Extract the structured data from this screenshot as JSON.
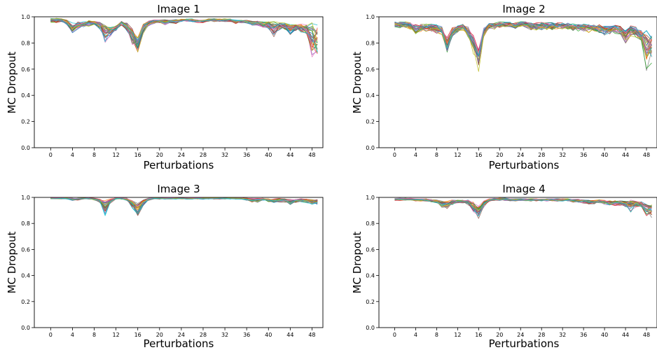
{
  "chart_data": [
    {
      "type": "line",
      "title": "Image 1",
      "xlabel": "Perturbations",
      "ylabel": "MC Dropout",
      "xlim": [
        -3,
        50
      ],
      "ylim": [
        0.0,
        1.0
      ],
      "xticks": [
        0,
        4,
        8,
        12,
        16,
        20,
        24,
        28,
        32,
        36,
        40,
        44,
        48
      ],
      "yticks": [
        0.0,
        0.2,
        0.4,
        0.6,
        0.8,
        1.0
      ],
      "xtick_labels": [
        "0",
        "4",
        "8",
        "12",
        "16",
        "20",
        "24",
        "28",
        "32",
        "36",
        "40",
        "44",
        "48"
      ],
      "ytick_labels": [
        "0.0",
        "0.2",
        "0.4",
        "0.6",
        "0.8",
        "1.0"
      ],
      "grid": false,
      "num_series": 30,
      "x": [
        0,
        1,
        2,
        3,
        4,
        5,
        6,
        7,
        8,
        9,
        10,
        11,
        12,
        13,
        14,
        15,
        16,
        17,
        18,
        19,
        20,
        21,
        22,
        23,
        24,
        25,
        26,
        27,
        28,
        29,
        30,
        31,
        32,
        33,
        34,
        35,
        36,
        37,
        38,
        39,
        40,
        41,
        42,
        43,
        44,
        45,
        46,
        47,
        48,
        49
      ],
      "mean_values": [
        0.98,
        0.98,
        0.98,
        0.97,
        0.93,
        0.95,
        0.95,
        0.96,
        0.96,
        0.95,
        0.91,
        0.9,
        0.92,
        0.96,
        0.94,
        0.88,
        0.82,
        0.93,
        0.96,
        0.97,
        0.97,
        0.97,
        0.97,
        0.97,
        0.98,
        0.98,
        0.98,
        0.97,
        0.97,
        0.98,
        0.98,
        0.98,
        0.98,
        0.98,
        0.97,
        0.97,
        0.97,
        0.96,
        0.96,
        0.95,
        0.95,
        0.93,
        0.94,
        0.94,
        0.92,
        0.93,
        0.93,
        0.92,
        0.88,
        0.86
      ],
      "min_values": [
        0.95,
        0.95,
        0.96,
        0.93,
        0.86,
        0.9,
        0.91,
        0.92,
        0.93,
        0.9,
        0.78,
        0.84,
        0.88,
        0.93,
        0.88,
        0.76,
        0.71,
        0.86,
        0.92,
        0.94,
        0.95,
        0.93,
        0.95,
        0.94,
        0.96,
        0.96,
        0.96,
        0.95,
        0.95,
        0.96,
        0.96,
        0.96,
        0.96,
        0.96,
        0.94,
        0.95,
        0.95,
        0.93,
        0.93,
        0.9,
        0.89,
        0.82,
        0.89,
        0.89,
        0.85,
        0.88,
        0.87,
        0.85,
        0.6,
        0.62
      ]
    },
    {
      "type": "line",
      "title": "Image 2",
      "xlabel": "Perturbations",
      "ylabel": "MC Dropout",
      "xlim": [
        -3,
        50
      ],
      "ylim": [
        0.0,
        1.0
      ],
      "xticks": [
        0,
        4,
        8,
        12,
        16,
        20,
        24,
        28,
        32,
        36,
        40,
        44,
        48
      ],
      "yticks": [
        0.0,
        0.2,
        0.4,
        0.6,
        0.8,
        1.0
      ],
      "xtick_labels": [
        "0",
        "4",
        "8",
        "12",
        "16",
        "20",
        "24",
        "28",
        "32",
        "36",
        "40",
        "44",
        "48"
      ],
      "ytick_labels": [
        "0.0",
        "0.2",
        "0.4",
        "0.6",
        "0.8",
        "1.0"
      ],
      "grid": false,
      "num_series": 30,
      "x": [
        0,
        1,
        2,
        3,
        4,
        5,
        6,
        7,
        8,
        9,
        10,
        11,
        12,
        13,
        14,
        15,
        16,
        17,
        18,
        19,
        20,
        21,
        22,
        23,
        24,
        25,
        26,
        27,
        28,
        29,
        30,
        31,
        32,
        33,
        34,
        35,
        36,
        37,
        38,
        39,
        40,
        41,
        42,
        43,
        44,
        45,
        46,
        47,
        48,
        49
      ],
      "mean_values": [
        0.95,
        0.95,
        0.95,
        0.94,
        0.92,
        0.93,
        0.93,
        0.93,
        0.92,
        0.91,
        0.8,
        0.9,
        0.92,
        0.93,
        0.9,
        0.82,
        0.72,
        0.9,
        0.94,
        0.94,
        0.95,
        0.95,
        0.95,
        0.94,
        0.95,
        0.95,
        0.94,
        0.94,
        0.94,
        0.94,
        0.94,
        0.94,
        0.94,
        0.94,
        0.93,
        0.93,
        0.93,
        0.92,
        0.93,
        0.92,
        0.91,
        0.91,
        0.92,
        0.91,
        0.87,
        0.91,
        0.9,
        0.88,
        0.82,
        0.8
      ],
      "min_values": [
        0.91,
        0.91,
        0.91,
        0.89,
        0.86,
        0.88,
        0.88,
        0.88,
        0.86,
        0.85,
        0.68,
        0.83,
        0.87,
        0.89,
        0.82,
        0.7,
        0.56,
        0.84,
        0.9,
        0.9,
        0.91,
        0.91,
        0.91,
        0.89,
        0.91,
        0.91,
        0.89,
        0.89,
        0.89,
        0.89,
        0.89,
        0.9,
        0.9,
        0.9,
        0.88,
        0.88,
        0.88,
        0.86,
        0.88,
        0.86,
        0.85,
        0.85,
        0.86,
        0.85,
        0.78,
        0.84,
        0.83,
        0.8,
        0.54,
        0.62
      ]
    },
    {
      "type": "line",
      "title": "Image 3",
      "xlabel": "Perturbations",
      "ylabel": "MC Dropout",
      "xlim": [
        -3,
        50
      ],
      "ylim": [
        0.0,
        1.0
      ],
      "xticks": [
        0,
        4,
        8,
        12,
        16,
        20,
        24,
        28,
        32,
        36,
        40,
        44,
        48
      ],
      "yticks": [
        0.0,
        0.2,
        0.4,
        0.6,
        0.8,
        1.0
      ],
      "xtick_labels": [
        "0",
        "4",
        "8",
        "12",
        "16",
        "20",
        "24",
        "28",
        "32",
        "36",
        "40",
        "44",
        "48"
      ],
      "ytick_labels": [
        "0.0",
        "0.2",
        "0.4",
        "0.6",
        "0.8",
        "1.0"
      ],
      "grid": false,
      "num_series": 30,
      "x": [
        0,
        1,
        2,
        3,
        4,
        5,
        6,
        7,
        8,
        9,
        10,
        11,
        12,
        13,
        14,
        15,
        16,
        17,
        18,
        19,
        20,
        21,
        22,
        23,
        24,
        25,
        26,
        27,
        28,
        29,
        30,
        31,
        32,
        33,
        34,
        35,
        36,
        37,
        38,
        39,
        40,
        41,
        42,
        43,
        44,
        45,
        46,
        47,
        48,
        49
      ],
      "mean_values": [
        0.995,
        0.995,
        0.995,
        0.995,
        0.99,
        0.99,
        0.995,
        0.995,
        0.99,
        0.98,
        0.95,
        0.98,
        0.995,
        0.995,
        0.99,
        0.96,
        0.93,
        0.97,
        0.99,
        0.995,
        0.995,
        0.995,
        0.995,
        0.995,
        0.995,
        0.995,
        0.995,
        0.995,
        0.995,
        0.995,
        0.995,
        0.995,
        0.995,
        0.995,
        0.995,
        0.995,
        0.99,
        0.985,
        0.985,
        0.99,
        0.985,
        0.98,
        0.985,
        0.985,
        0.975,
        0.98,
        0.985,
        0.98,
        0.975,
        0.975
      ],
      "min_values": [
        0.985,
        0.985,
        0.985,
        0.985,
        0.975,
        0.975,
        0.985,
        0.985,
        0.975,
        0.96,
        0.85,
        0.95,
        0.985,
        0.985,
        0.975,
        0.9,
        0.85,
        0.93,
        0.975,
        0.985,
        0.985,
        0.985,
        0.985,
        0.985,
        0.985,
        0.985,
        0.985,
        0.985,
        0.985,
        0.985,
        0.985,
        0.985,
        0.985,
        0.985,
        0.985,
        0.985,
        0.975,
        0.96,
        0.96,
        0.975,
        0.96,
        0.955,
        0.96,
        0.96,
        0.94,
        0.955,
        0.96,
        0.955,
        0.94,
        0.94
      ]
    },
    {
      "type": "line",
      "title": "Image 4",
      "xlabel": "Perturbations",
      "ylabel": "MC Dropout",
      "xlim": [
        -3,
        50
      ],
      "ylim": [
        0.0,
        1.0
      ],
      "xticks": [
        0,
        4,
        8,
        12,
        16,
        20,
        24,
        28,
        32,
        36,
        40,
        44,
        48
      ],
      "yticks": [
        0.0,
        0.2,
        0.4,
        0.6,
        0.8,
        1.0
      ],
      "xtick_labels": [
        "0",
        "4",
        "8",
        "12",
        "16",
        "20",
        "24",
        "28",
        "32",
        "36",
        "40",
        "44",
        "48"
      ],
      "ytick_labels": [
        "0.0",
        "0.2",
        "0.4",
        "0.6",
        "0.8",
        "1.0"
      ],
      "grid": false,
      "num_series": 30,
      "x": [
        0,
        1,
        2,
        3,
        4,
        5,
        6,
        7,
        8,
        9,
        10,
        11,
        12,
        13,
        14,
        15,
        16,
        17,
        18,
        19,
        20,
        21,
        22,
        23,
        24,
        25,
        26,
        27,
        28,
        29,
        30,
        31,
        32,
        33,
        34,
        35,
        36,
        37,
        38,
        39,
        40,
        41,
        42,
        43,
        44,
        45,
        46,
        47,
        48,
        49
      ],
      "mean_values": [
        0.99,
        0.99,
        0.99,
        0.99,
        0.985,
        0.985,
        0.985,
        0.98,
        0.975,
        0.96,
        0.955,
        0.97,
        0.975,
        0.975,
        0.97,
        0.94,
        0.91,
        0.96,
        0.985,
        0.99,
        0.99,
        0.99,
        0.985,
        0.985,
        0.985,
        0.985,
        0.985,
        0.985,
        0.985,
        0.985,
        0.985,
        0.985,
        0.985,
        0.985,
        0.98,
        0.98,
        0.975,
        0.97,
        0.97,
        0.975,
        0.97,
        0.965,
        0.965,
        0.965,
        0.96,
        0.955,
        0.96,
        0.955,
        0.93,
        0.92
      ],
      "min_values": [
        0.975,
        0.975,
        0.975,
        0.975,
        0.97,
        0.97,
        0.965,
        0.96,
        0.95,
        0.92,
        0.91,
        0.94,
        0.955,
        0.955,
        0.94,
        0.87,
        0.82,
        0.92,
        0.97,
        0.975,
        0.975,
        0.975,
        0.97,
        0.97,
        0.97,
        0.97,
        0.97,
        0.97,
        0.97,
        0.97,
        0.97,
        0.97,
        0.97,
        0.97,
        0.96,
        0.96,
        0.955,
        0.945,
        0.945,
        0.955,
        0.945,
        0.935,
        0.935,
        0.935,
        0.925,
        0.88,
        0.925,
        0.92,
        0.85,
        0.84
      ]
    }
  ],
  "colors": {
    "series_cycle": [
      "#1f77b4",
      "#ff7f0e",
      "#2ca02c",
      "#d62728",
      "#9467bd",
      "#8c564b",
      "#e377c2",
      "#7f7f7f",
      "#bcbd22",
      "#17becf"
    ],
    "axes": "#000000",
    "background": "#ffffff"
  }
}
